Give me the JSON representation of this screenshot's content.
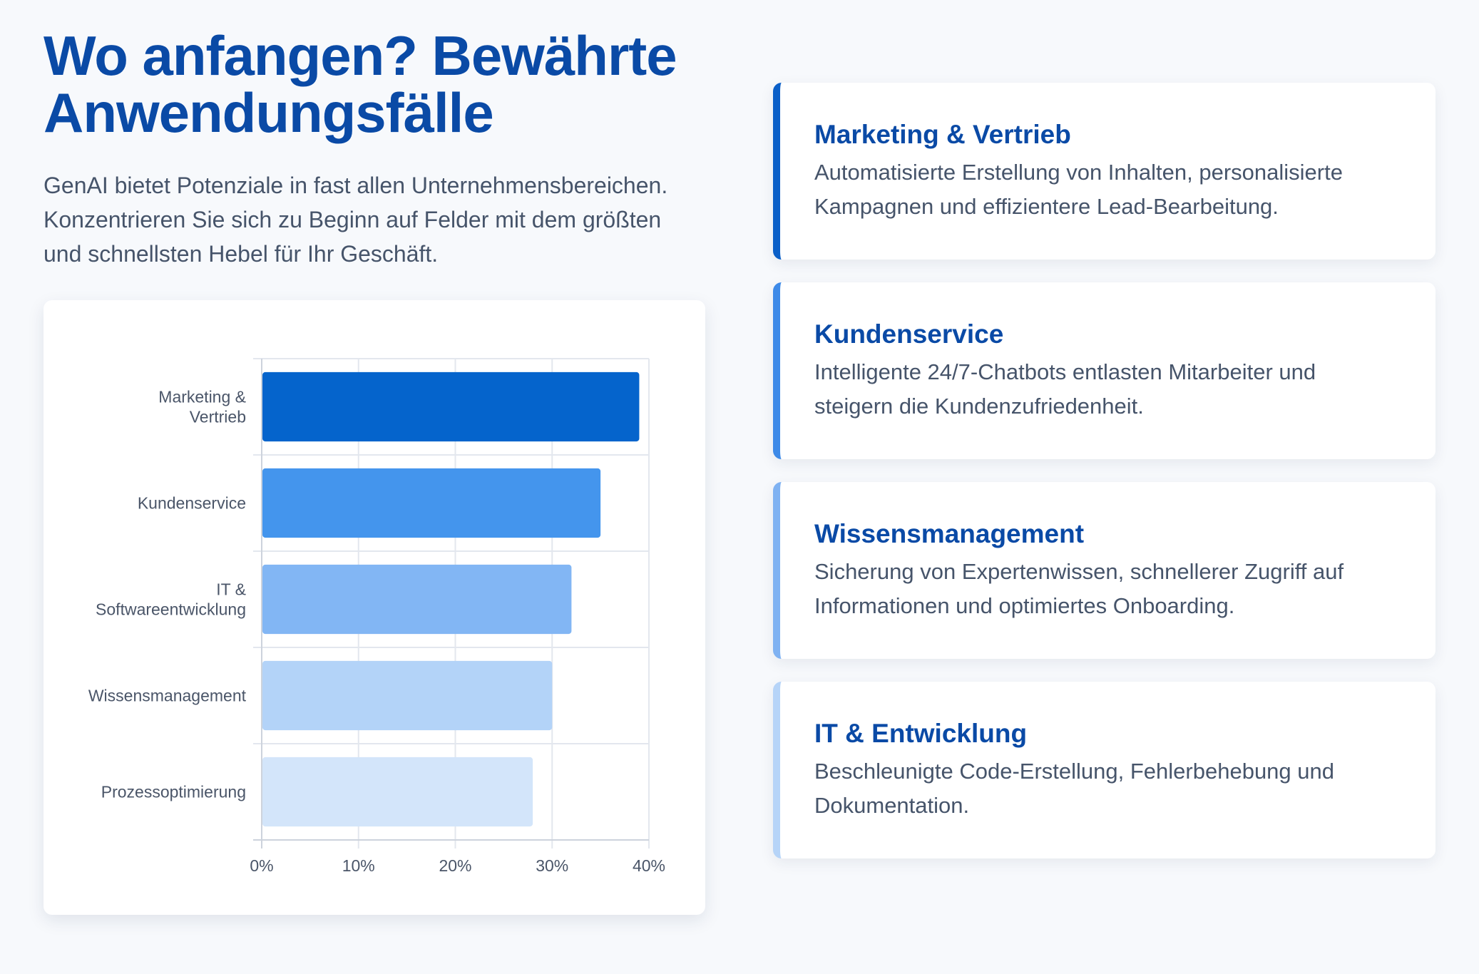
{
  "header": {
    "title_line1": "Wo anfangen? Bewährte",
    "title_line2": "Anwendungsfälle",
    "intro_line1": "GenAI bietet Potenziale in fast allen Unternehmensbereichen.",
    "intro_line2": "Konzentrieren Sie sich zu Beginn auf Felder mit dem größten",
    "intro_line3": "und schnellsten Hebel für Ihr Geschäft."
  },
  "chart_data": {
    "type": "bar",
    "orientation": "horizontal",
    "categories": [
      [
        "Marketing &",
        "Vertrieb"
      ],
      [
        "Kundenservice"
      ],
      [
        "IT &",
        "Softwareentwicklung"
      ],
      [
        "Wissensmanagement"
      ],
      [
        "Prozessoptimierung"
      ]
    ],
    "values": [
      39,
      35,
      32,
      30,
      28
    ],
    "colors": [
      "#0564cc",
      "#4495ed",
      "#82b6f4",
      "#b3d3f8",
      "#d3e5fa"
    ],
    "xlim": [
      0,
      40
    ],
    "xticks": [
      "0%",
      "10%",
      "20%",
      "30%",
      "40%"
    ],
    "grid": true,
    "title": "",
    "xlabel": "",
    "ylabel": ""
  },
  "cards": [
    {
      "title": "Marketing & Vertrieb",
      "text_line1": "Automatisierte Erstellung von Inhalten, personalisierte",
      "text_line2": "Kampagnen und effizientere Lead-Bearbeitung.",
      "accent": "#0a5fc8"
    },
    {
      "title": "Kundenservice",
      "text_line1": "Intelligente 24/7-Chatbots entlasten Mitarbeiter und",
      "text_line2": "steigern die Kundenzufriedenheit.",
      "accent": "#3d8ae8"
    },
    {
      "title": "Wissensmanagement",
      "text_line1": "Sicherung von Expertenwissen, schnellerer Zugriff auf",
      "text_line2": "Informationen und optimiertes Onboarding.",
      "accent": "#7fb2f2"
    },
    {
      "title": "IT & Entwicklung",
      "text_line1": "Beschleunigte Code-Erstellung, Fehlerbehebung und",
      "text_line2": "Dokumentation.",
      "accent": "#b6d4f8"
    }
  ]
}
